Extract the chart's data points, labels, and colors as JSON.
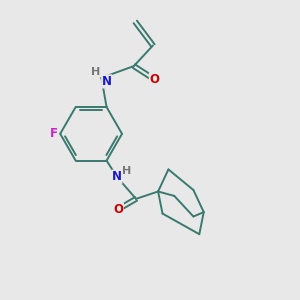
{
  "background_color": "#e8e8e8",
  "bond_color": "#3a7a6e",
  "bond_width": 1.4,
  "atom_colors": {
    "N": "#1a1acc",
    "O": "#cc0000",
    "F": "#cc22cc",
    "H_gray": "#777777",
    "C": "#3a7a6e"
  },
  "font_size": 8.5,
  "figsize": [
    3.0,
    3.0
  ],
  "dpi": 100
}
